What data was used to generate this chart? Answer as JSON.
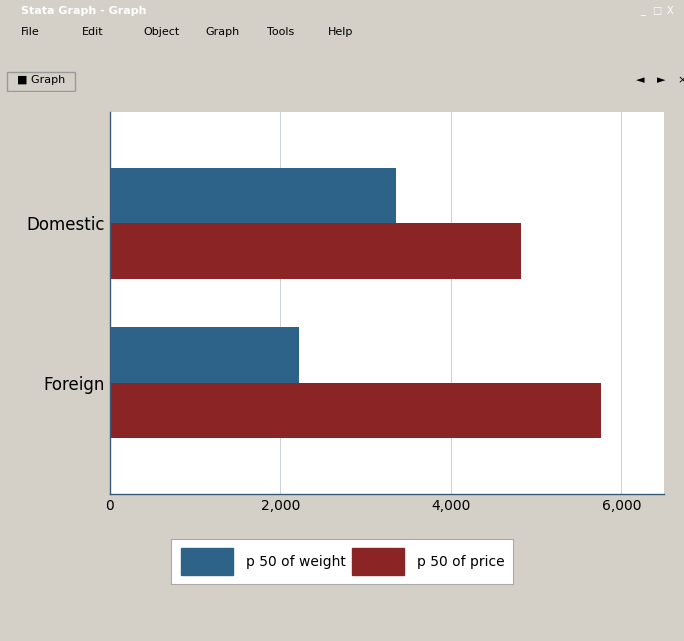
{
  "categories": [
    "Foreign",
    "Domestic"
  ],
  "weight_values": [
    2215,
    3350
  ],
  "price_values": [
    5759,
    4820
  ],
  "weight_color": "#2d6388",
  "price_color": "#8b2424",
  "outer_bg": "#d4d0c8",
  "inner_bg": "#dce4ec",
  "plot_bg_color": "#ffffff",
  "xlim": [
    0,
    6500
  ],
  "xticks": [
    0,
    2000,
    4000,
    6000
  ],
  "xticklabels": [
    "0",
    "2,000",
    "4,000",
    "6,000"
  ],
  "legend_labels": [
    "p 50 of weight",
    "p 50 of price"
  ],
  "bar_height": 0.35,
  "title_bar_color": "#0a246a",
  "title_text": "Stata Graph - Graph",
  "bottom_bar_color": "#808080"
}
